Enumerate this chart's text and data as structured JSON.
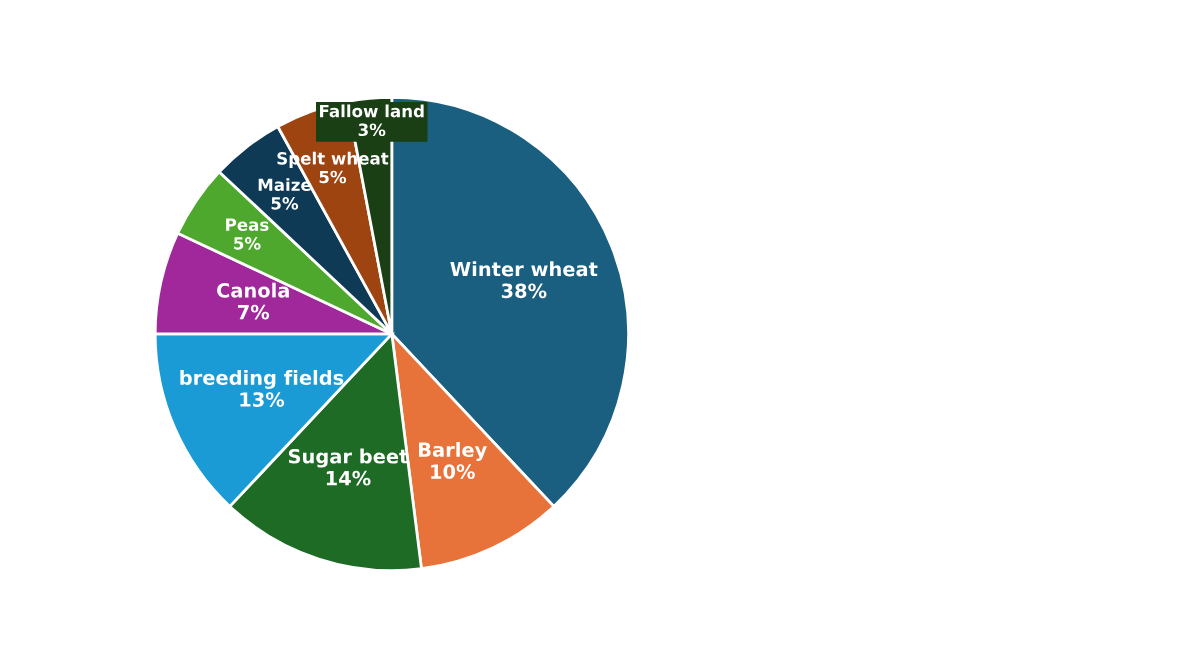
{
  "chart_data": {
    "type": "pie",
    "categories": [
      "Winter wheat",
      "Barley",
      "Sugar beet",
      "breeding fields",
      "Canola",
      "Peas",
      "Maize",
      "Spelt wheat",
      "Fallow land"
    ],
    "values": [
      38,
      10,
      14,
      13,
      7,
      5,
      5,
      5,
      3
    ],
    "colors": [
      "#1a5e80",
      "#e8733a",
      "#1e6b25",
      "#1a9bd6",
      "#a0289a",
      "#4fa82e",
      "#0f3a55",
      "#9e4410",
      "#1a3f15"
    ],
    "value_labels": [
      "38%",
      "10%",
      "14%",
      "13%",
      "7%",
      "5%",
      "5%",
      "5%",
      "3%"
    ]
  }
}
